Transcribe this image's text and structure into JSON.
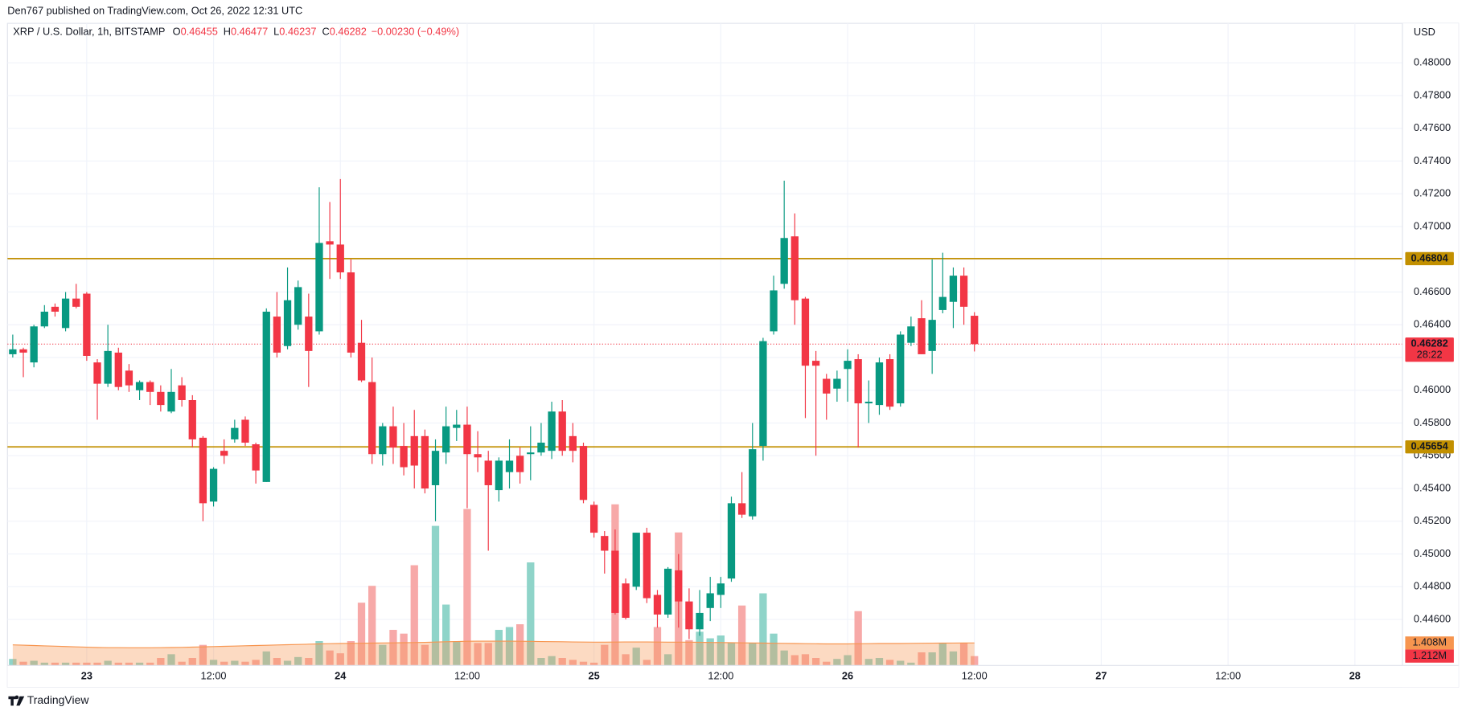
{
  "chart_data": {
    "type": "candlestick",
    "published": "Den767 published on TradingView.com, Oct 26, 2022 12:31 UTC",
    "symbol": "XRP / U.S. Dollar, 1h, BITSTAMP",
    "ohlc_labels": [
      "O",
      "H",
      "L",
      "C"
    ],
    "change_label": "−0.00230 (−0.49%)",
    "currency": "USD",
    "countdown": "28:22",
    "brand": "TradingView",
    "colors": {
      "up": "#089981",
      "down": "#f23645",
      "up_volume": "#8fd4c9",
      "down_volume": "#f7a9a8",
      "level": "#c29000",
      "volume_ma": "#f7954f",
      "grid": "#f0f3fa"
    },
    "grid": true,
    "x": [
      -7,
      -6,
      -5,
      -4,
      -3,
      -2,
      -1,
      0,
      1,
      2,
      3,
      4,
      5,
      6,
      7,
      8,
      9,
      10,
      11,
      12,
      13,
      14,
      15,
      16,
      17,
      18,
      19,
      20,
      21,
      22,
      23,
      24,
      25,
      26,
      27,
      28,
      29,
      30,
      31,
      32,
      33,
      34,
      35,
      36,
      37,
      38,
      39,
      40,
      41,
      42,
      43,
      44,
      45,
      46,
      47,
      48,
      49,
      50,
      51,
      52,
      53,
      54,
      55,
      56,
      57,
      58,
      59,
      60,
      61,
      62,
      63,
      64,
      65,
      66,
      67,
      68,
      69,
      70,
      71,
      72,
      73,
      74,
      75,
      76,
      77,
      78,
      79,
      80,
      81,
      82,
      83,
      84
    ],
    "open": [
      0.4622,
      0.4625,
      0.4617,
      0.4639,
      0.4651,
      0.4638,
      0.4656,
      0.4659,
      0.4617,
      0.4604,
      0.4623,
      0.4612,
      0.46,
      0.4605,
      0.4599,
      0.4587,
      0.4603,
      0.4594,
      0.4571,
      0.4532,
      0.4563,
      0.457,
      0.4582,
      0.4567,
      0.4544,
      0.4645,
      0.4627,
      0.464,
      0.4645,
      0.4636,
      0.4691,
      0.4689,
      0.4672,
      0.4629,
      0.4605,
      0.4561,
      0.4578,
      0.4566,
      0.4572,
      0.4572,
      0.4542,
      0.4562,
      0.4577,
      0.4579,
      0.4561,
      0.4557,
      0.4539,
      0.455,
      0.456,
      0.4561,
      0.4562,
      0.4563,
      0.4587,
      0.4572,
      0.4566,
      0.453,
      0.4511,
      0.4502,
      0.4482,
      0.448,
      0.4513,
      0.4475,
      0.4463,
      0.449,
      0.4471,
      0.4454,
      0.4467,
      0.4475,
      0.4485,
      0.4531,
      0.4523,
      0.4566,
      0.4636,
      0.4665,
      0.4694,
      0.4656,
      0.4618,
      0.4607,
      0.4601,
      0.4613,
      0.4619,
      0.4592,
      0.4591,
      0.4619,
      0.4592,
      0.4629,
      0.4644,
      0.4624,
      0.4649,
      0.4654,
      0.467,
      0.46455
    ],
    "high": [
      0.4634,
      0.4626,
      0.464,
      0.4652,
      0.4653,
      0.466,
      0.4665,
      0.466,
      0.4619,
      0.464,
      0.4626,
      0.4616,
      0.4606,
      0.4606,
      0.4603,
      0.4613,
      0.4608,
      0.4597,
      0.4572,
      0.4553,
      0.457,
      0.4582,
      0.4584,
      0.4568,
      0.465,
      0.466,
      0.4675,
      0.4667,
      0.4659,
      0.4724,
      0.4715,
      0.4729,
      0.468,
      0.4643,
      0.462,
      0.458,
      0.459,
      0.458,
      0.4588,
      0.4576,
      0.457,
      0.459,
      0.4588,
      0.459,
      0.4575,
      0.4563,
      0.4559,
      0.457,
      0.4565,
      0.4578,
      0.458,
      0.4593,
      0.4594,
      0.458,
      0.4568,
      0.4532,
      0.4514,
      0.4515,
      0.4485,
      0.4513,
      0.4516,
      0.4478,
      0.4492,
      0.45,
      0.4479,
      0.4478,
      0.4486,
      0.4486,
      0.4535,
      0.455,
      0.458,
      0.4632,
      0.467,
      0.4728,
      0.4708,
      0.4657,
      0.4624,
      0.461,
      0.4612,
      0.4625,
      0.4622,
      0.4606,
      0.462,
      0.4622,
      0.4636,
      0.4645,
      0.4655,
      0.468,
      0.4684,
      0.4675,
      0.4675,
      0.46477
    ],
    "low": [
      0.462,
      0.4608,
      0.4614,
      0.4638,
      0.4645,
      0.4636,
      0.465,
      0.4618,
      0.4582,
      0.4602,
      0.46,
      0.4599,
      0.4594,
      0.4591,
      0.4587,
      0.4586,
      0.459,
      0.4565,
      0.452,
      0.4529,
      0.4555,
      0.4568,
      0.4566,
      0.4543,
      0.4544,
      0.462,
      0.4625,
      0.4637,
      0.4602,
      0.4634,
      0.4668,
      0.4668,
      0.462,
      0.4605,
      0.4555,
      0.4554,
      0.4555,
      0.4548,
      0.454,
      0.4537,
      0.452,
      0.4555,
      0.4569,
      0.4528,
      0.455,
      0.4502,
      0.4532,
      0.454,
      0.4543,
      0.4545,
      0.456,
      0.4558,
      0.456,
      0.4556,
      0.4531,
      0.451,
      0.4488,
      0.4463,
      0.446,
      0.4478,
      0.447,
      0.4455,
      0.4461,
      0.4455,
      0.4448,
      0.445,
      0.4459,
      0.4467,
      0.4483,
      0.4522,
      0.4521,
      0.4557,
      0.4634,
      0.4662,
      0.464,
      0.4583,
      0.456,
      0.4582,
      0.4593,
      0.4593,
      0.4565,
      0.458,
      0.4585,
      0.4588,
      0.459,
      0.4627,
      0.4622,
      0.461,
      0.4647,
      0.4638,
      0.464,
      0.46237
    ],
    "close": [
      0.4625,
      0.4623,
      0.4639,
      0.4648,
      0.4648,
      0.4656,
      0.4651,
      0.4621,
      0.4604,
      0.4624,
      0.4602,
      0.4603,
      0.4605,
      0.4599,
      0.4591,
      0.4599,
      0.4594,
      0.457,
      0.4531,
      0.4552,
      0.456,
      0.4577,
      0.4568,
      0.4551,
      0.4648,
      0.4623,
      0.4655,
      0.4663,
      0.4624,
      0.469,
      0.4689,
      0.4672,
      0.4623,
      0.4606,
      0.4561,
      0.4578,
      0.4565,
      0.4553,
      0.4554,
      0.454,
      0.4563,
      0.4578,
      0.4579,
      0.4561,
      0.4559,
      0.4542,
      0.4557,
      0.4557,
      0.455,
      0.4562,
      0.4568,
      0.4587,
      0.4563,
      0.4563,
      0.4533,
      0.4513,
      0.4502,
      0.4464,
      0.4461,
      0.4513,
      0.4473,
      0.4463,
      0.4491,
      0.4471,
      0.4454,
      0.4464,
      0.4476,
      0.4482,
      0.4531,
      0.4524,
      0.4564,
      0.463,
      0.4661,
      0.4693,
      0.4655,
      0.4615,
      0.4615,
      0.4598,
      0.4607,
      0.4618,
      0.4592,
      0.4593,
      0.4617,
      0.459,
      0.4634,
      0.4639,
      0.4622,
      0.4643,
      0.4657,
      0.467,
      0.4651,
      0.46282
    ],
    "xlim": [
      -7.5,
      124.5
    ],
    "xticks": [
      {
        "value": 0,
        "label": "23"
      },
      {
        "value": 12,
        "label": "12:00"
      },
      {
        "value": 24,
        "label": "24"
      },
      {
        "value": 36,
        "label": "12:00"
      },
      {
        "value": 48,
        "label": "25"
      },
      {
        "value": 60,
        "label": "12:00"
      },
      {
        "value": 72,
        "label": "26"
      },
      {
        "value": 84,
        "label": "12:00"
      },
      {
        "value": 96,
        "label": "27"
      },
      {
        "value": 108,
        "label": "12:00"
      },
      {
        "value": 120,
        "label": "28"
      }
    ],
    "ylim": [
      0.44319,
      0.48241
    ],
    "yticks": [
      {
        "value": 0.48,
        "label": "0.48000"
      },
      {
        "value": 0.478,
        "label": "0.47800"
      },
      {
        "value": 0.476,
        "label": "0.47600"
      },
      {
        "value": 0.474,
        "label": "0.47400"
      },
      {
        "value": 0.472,
        "label": "0.47200"
      },
      {
        "value": 0.47,
        "label": "0.47000"
      },
      {
        "value": 0.468,
        "label": "0.46800"
      },
      {
        "value": 0.466,
        "label": "0.46600"
      },
      {
        "value": 0.464,
        "label": "0.46400"
      },
      {
        "value": 0.462,
        "label": "0.46200"
      },
      {
        "value": 0.46,
        "label": "0.46000"
      },
      {
        "value": 0.458,
        "label": "0.45800"
      },
      {
        "value": 0.456,
        "label": "0.45600"
      },
      {
        "value": 0.454,
        "label": "0.45400"
      },
      {
        "value": 0.452,
        "label": "0.45200"
      },
      {
        "value": 0.45,
        "label": "0.45000"
      },
      {
        "value": 0.448,
        "label": "0.44800"
      },
      {
        "value": 0.446,
        "label": "0.44600"
      }
    ],
    "levels": [
      0.46804,
      0.45654
    ],
    "volume": {
      "ylim": [
        1.072,
        3.6
      ],
      "values": [
        1.17,
        1.128,
        1.142,
        1.114,
        1.114,
        1.114,
        1.114,
        1.114,
        1.114,
        1.142,
        1.114,
        1.114,
        1.114,
        1.114,
        1.184,
        1.24,
        1.128,
        1.184,
        1.38,
        1.156,
        1.128,
        1.142,
        1.128,
        1.156,
        1.282,
        1.184,
        1.142,
        1.198,
        1.184,
        1.436,
        1.296,
        1.254,
        1.436,
        2.01,
        2.262,
        1.38,
        1.604,
        1.548,
        2.57,
        1.38,
        3.158,
        1.982,
        1.436,
        3.41,
        1.408,
        1.408,
        1.604,
        1.646,
        1.688,
        2.612,
        1.184,
        1.212,
        1.184,
        1.156,
        1.128,
        1.114,
        1.38,
        3.48,
        1.24,
        1.338,
        1.156,
        1.646,
        1.24,
        3.06,
        1.45,
        1.576,
        1.478,
        1.52,
        1.408,
        1.968,
        1.408,
        2.15,
        1.548,
        1.296,
        1.226,
        1.24,
        1.184,
        1.128,
        1.17,
        1.226,
        1.884,
        1.17,
        1.184,
        1.156,
        1.142,
        1.114,
        1.268,
        1.268,
        1.408,
        1.282,
        1.408,
        1.212
      ],
      "last_label": "1.212M",
      "ma": [
        1.38,
        1.375,
        1.37,
        1.365,
        1.36,
        1.355,
        1.35,
        1.345,
        1.34,
        1.338,
        1.338,
        1.336,
        1.336,
        1.336,
        1.338,
        1.34,
        1.342,
        1.346,
        1.35,
        1.354,
        1.358,
        1.362,
        1.366,
        1.37,
        1.374,
        1.378,
        1.382,
        1.386,
        1.39,
        1.394,
        1.398,
        1.4,
        1.402,
        1.404,
        1.406,
        1.408,
        1.41,
        1.412,
        1.414,
        1.418,
        1.422,
        1.426,
        1.43,
        1.434,
        1.436,
        1.436,
        1.436,
        1.436,
        1.434,
        1.432,
        1.43,
        1.428,
        1.426,
        1.424,
        1.422,
        1.42,
        1.42,
        1.422,
        1.424,
        1.424,
        1.424,
        1.422,
        1.42,
        1.42,
        1.42,
        1.418,
        1.416,
        1.414,
        1.412,
        1.41,
        1.408,
        1.406,
        1.404,
        1.402,
        1.4,
        1.398,
        1.396,
        1.394,
        1.394,
        1.394,
        1.396,
        1.398,
        1.4,
        1.4,
        1.4,
        1.402,
        1.404,
        1.405,
        1.406,
        1.407,
        1.408,
        1.408
      ],
      "ma_last_label": "1.408M"
    }
  }
}
